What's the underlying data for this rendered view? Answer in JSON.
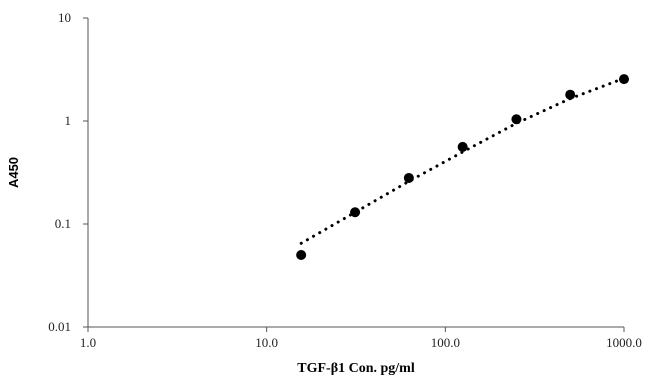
{
  "chart_data": {
    "type": "scatter",
    "title": "",
    "xlabel": "TGF-β1 Con. pg/ml",
    "ylabel": "A450",
    "xscale": "log",
    "yscale": "log",
    "xlim": [
      1,
      1000
    ],
    "ylim": [
      0.01,
      10
    ],
    "xticks": [
      1,
      10,
      100,
      1000
    ],
    "xtick_labels": [
      "1.0",
      "10.0",
      "100.0",
      "1000.0"
    ],
    "yticks": [
      0.01,
      0.1,
      1,
      10
    ],
    "ytick_labels": [
      "0.01",
      "0.1",
      "1",
      "10"
    ],
    "grid": false,
    "legend": "none",
    "marker_color": "#000000",
    "series": [
      {
        "x": [
          15.6,
          31.25,
          62.5,
          125,
          250,
          500,
          1000
        ],
        "y": [
          0.05,
          0.13,
          0.28,
          0.56,
          1.04,
          1.8,
          2.55
        ]
      }
    ],
    "trendline": {
      "style": "dotted",
      "x": [
        15.6,
        31.25,
        62.5,
        125,
        250,
        500,
        1000
      ],
      "y": [
        0.065,
        0.13,
        0.26,
        0.5,
        0.95,
        1.65,
        2.6
      ]
    }
  }
}
